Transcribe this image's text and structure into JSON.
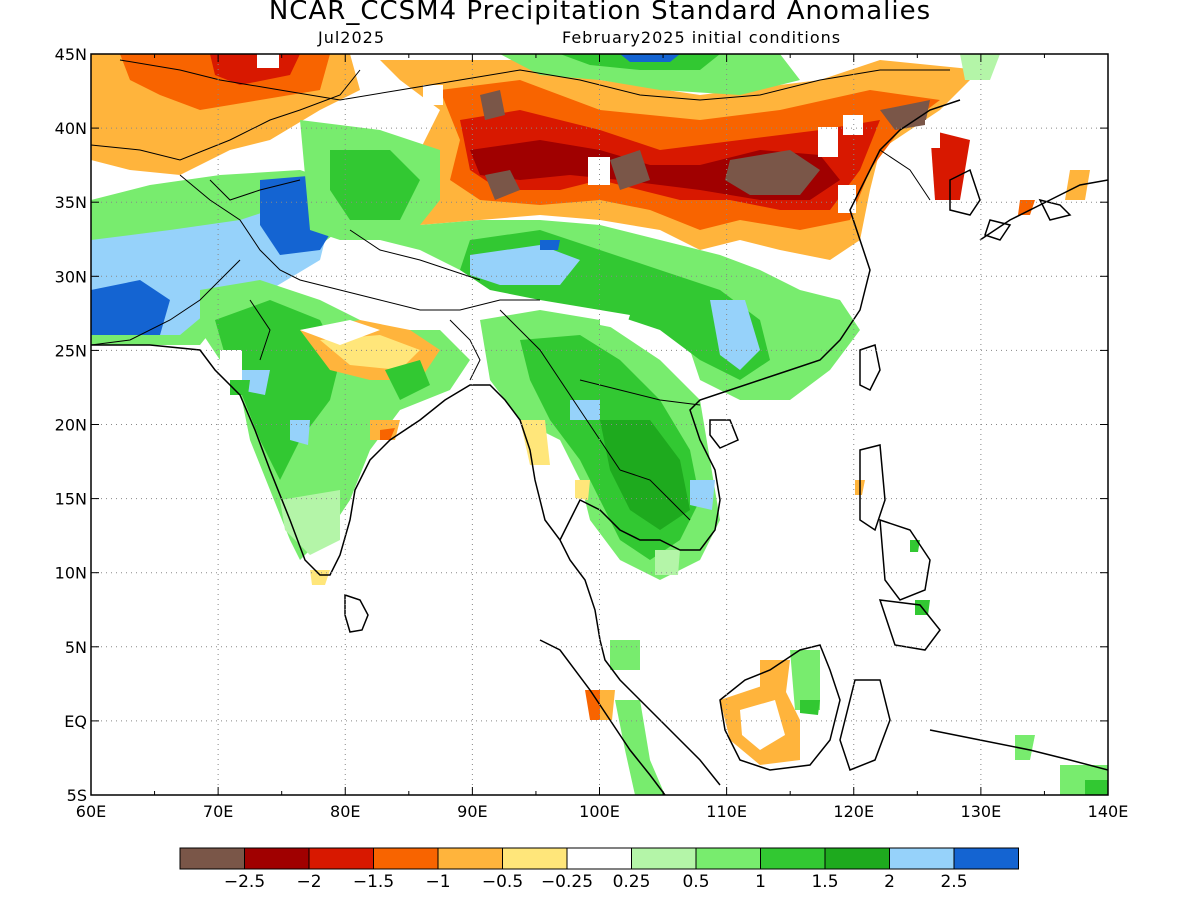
{
  "title": "NCAR_CCSM4 Precipitation Standard Anomalies",
  "subtitle_left": "Jul2025",
  "subtitle_right": "February2025 initial conditions",
  "map": {
    "lon_range": [
      60,
      140
    ],
    "lat_range": [
      -5,
      45
    ],
    "x_ticks": [
      {
        "lon": 60,
        "label": "60E"
      },
      {
        "lon": 70,
        "label": "70E"
      },
      {
        "lon": 80,
        "label": "80E"
      },
      {
        "lon": 90,
        "label": "90E"
      },
      {
        "lon": 100,
        "label": "100E"
      },
      {
        "lon": 110,
        "label": "110E"
      },
      {
        "lon": 120,
        "label": "120E"
      },
      {
        "lon": 130,
        "label": "130E"
      },
      {
        "lon": 140,
        "label": "140E"
      }
    ],
    "y_ticks": [
      {
        "lat": 45,
        "label": "45N"
      },
      {
        "lat": 40,
        "label": "40N"
      },
      {
        "lat": 35,
        "label": "35N"
      },
      {
        "lat": 30,
        "label": "30N"
      },
      {
        "lat": 25,
        "label": "25N"
      },
      {
        "lat": 20,
        "label": "20N"
      },
      {
        "lat": 15,
        "label": "15N"
      },
      {
        "lat": 10,
        "label": "10N"
      },
      {
        "lat": 5,
        "label": "5N"
      },
      {
        "lat": 0,
        "label": "EQ"
      },
      {
        "lat": -5,
        "label": "5S"
      }
    ],
    "gridlines": true
  },
  "colorbar": {
    "colors": [
      "#7a5648",
      "#a00000",
      "#d81800",
      "#f86400",
      "#ffb43c",
      "#ffe67a",
      "#ffffff",
      "#b4f5a8",
      "#78ec6e",
      "#32c832",
      "#1eaa1e",
      "#96d2fa",
      "#1464d2"
    ],
    "labels": [
      "-2.5",
      "-2",
      "-1.5",
      "-1",
      "-0.5",
      "-0.25",
      "0.25",
      "0.5",
      "1",
      "1.5",
      "2",
      "2.5"
    ]
  }
}
